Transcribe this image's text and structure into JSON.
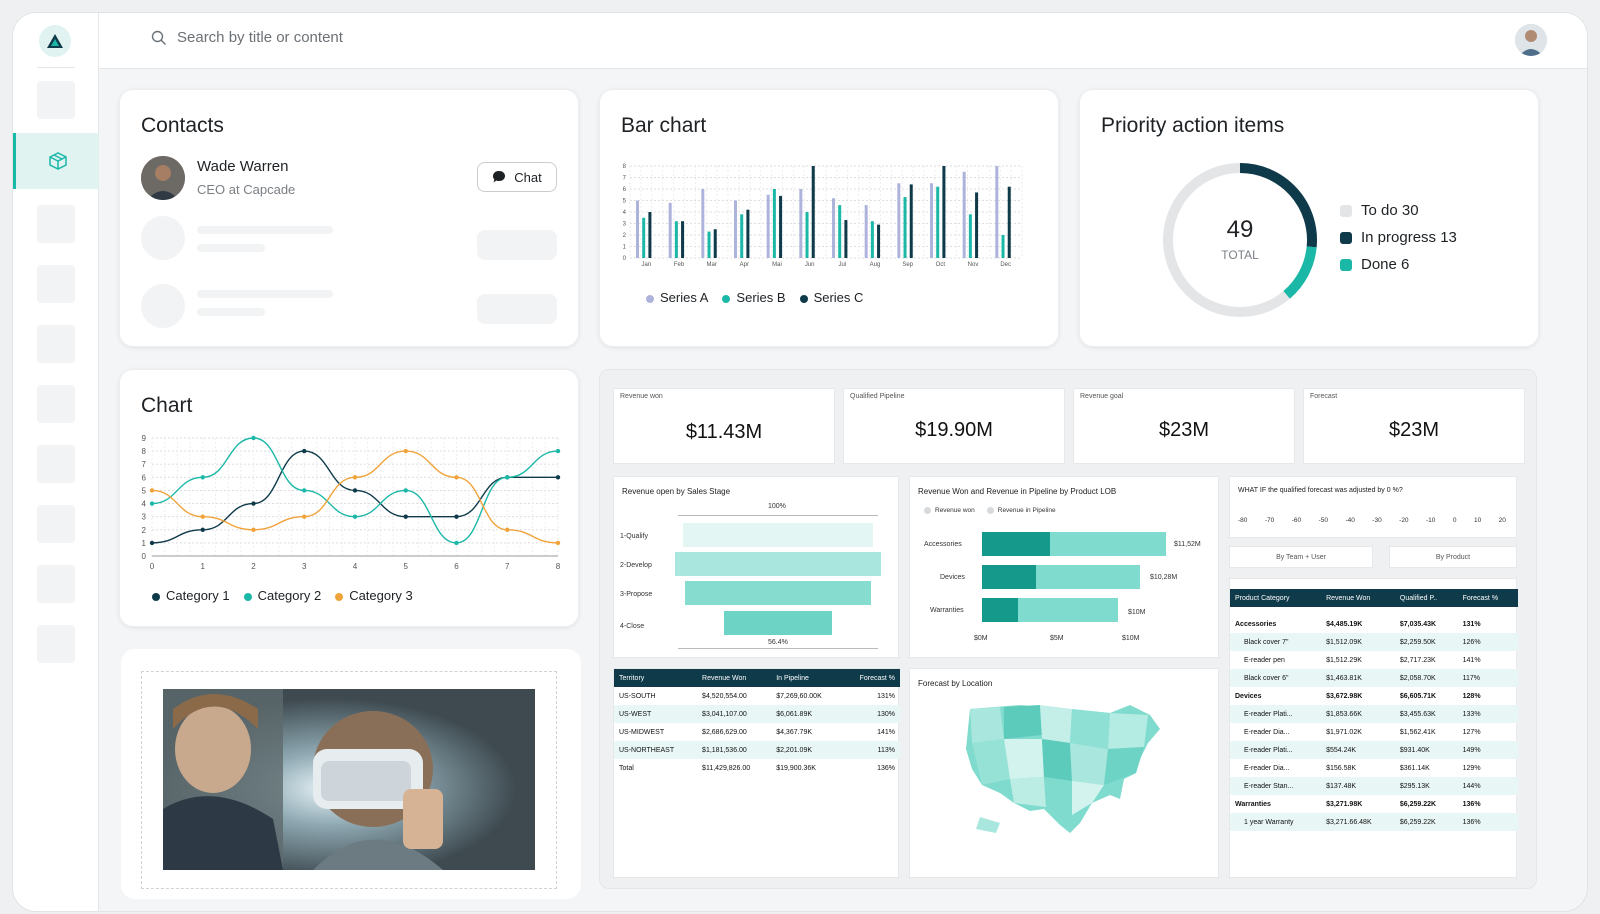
{
  "search": {
    "placeholder": "Search by title or content"
  },
  "contacts": {
    "title": "Contacts",
    "person": {
      "name": "Wade Warren",
      "role": "CEO at Capcade"
    },
    "chat_label": "Chat"
  },
  "bar_chart": {
    "title": "Bar chart",
    "legend": [
      "Series A",
      "Series B",
      "Series C"
    ]
  },
  "priority": {
    "title": "Priority action items",
    "total": "49",
    "total_label": "TOTAL",
    "items": [
      {
        "label": "To do 30",
        "color": "#e3e5e7"
      },
      {
        "label": "In progress 13",
        "color": "#0e3a4a"
      },
      {
        "label": "Done 6",
        "color": "#1bb8a8"
      }
    ]
  },
  "line_chart": {
    "title": "Chart",
    "legend": [
      "Category 1",
      "Category 2",
      "Category 3"
    ]
  },
  "kpis": [
    {
      "label": "Revenue won",
      "value": "$11.43M"
    },
    {
      "label": "Qualified Pipeline",
      "value": "$19.90M"
    },
    {
      "label": "Revenue goal",
      "value": "$23M"
    },
    {
      "label": "Forecast",
      "value": "$23M"
    }
  ],
  "funnel": {
    "title": "Revenue open by Sales Stage",
    "top": "100%",
    "bottom": "56.4%",
    "stages": [
      "1-Qualify",
      "2-Develop",
      "3-Propose",
      "4-Close"
    ]
  },
  "lob": {
    "title": "Revenue Won and Revenue in Pipeline by Product LOB",
    "legend": [
      "Revenue won",
      "Revenue in Pipeline"
    ],
    "rows": [
      {
        "name": "Accessories",
        "value": "$11,52M"
      },
      {
        "name": "Devices",
        "value": "$10,28M"
      },
      {
        "name": "Warranties",
        "value": "$10M"
      }
    ],
    "axis": [
      "$0M",
      "$5M",
      "$10M"
    ]
  },
  "whatif": {
    "title": "WHAT IF the qualified forecast was adjusted by 0 %?",
    "ticks": [
      "-80",
      "-70",
      "-60",
      "-50",
      "-40",
      "-30",
      "-20",
      "-10",
      "0",
      "10",
      "20"
    ],
    "tab1": "By Team + User",
    "tab2": "By Product"
  },
  "territory": {
    "headers": [
      "Territory",
      "Revenue Won",
      "In Pipeline",
      "Forecast %"
    ],
    "rows": [
      [
        "US-SOUTH",
        "$4,520,554.00",
        "$7,269,60.00K",
        "131%"
      ],
      [
        "US-WEST",
        "$3,041,107.00",
        "$6,061.89K",
        "130%"
      ],
      [
        "US-MIDWEST",
        "$2,686,629.00",
        "$4,367.79K",
        "141%"
      ],
      [
        "US-NORTHEAST",
        "$1,181,536.00",
        "$2,201.09K",
        "113%"
      ],
      [
        "Total",
        "$11,429,826.00",
        "$19,900.36K",
        "136%"
      ]
    ]
  },
  "forecast_map": {
    "title": "Forecast by Location"
  },
  "product_table": {
    "headers": [
      "Product Category",
      "Revenue Won",
      "Qualified P..",
      "Forecast %"
    ],
    "rows": [
      {
        "c": "Accessories",
        "r": "$4,485.19K",
        "q": "$7,035.43K",
        "f": "131%",
        "bold": true
      },
      {
        "c": "Black cover 7\"",
        "r": "$1,512.09K",
        "q": "$2,259.50K",
        "f": "126%"
      },
      {
        "c": "E-reader pen",
        "r": "$1,512.29K",
        "q": "$2,717.23K",
        "f": "141%"
      },
      {
        "c": "Black cover 6\"",
        "r": "$1,463.81K",
        "q": "$2,058.70K",
        "f": "117%"
      },
      {
        "c": "Devices",
        "r": "$3,672.98K",
        "q": "$6,605.71K",
        "f": "128%",
        "bold": true
      },
      {
        "c": "E-reader Plati...",
        "r": "$1,853.66K",
        "q": "$3,455.63K",
        "f": "133%"
      },
      {
        "c": "E-reader Dia...",
        "r": "$1,971.02K",
        "q": "$1,562.41K",
        "f": "127%"
      },
      {
        "c": "E-reader Plati...",
        "r": "$554.24K",
        "q": "$931.40K",
        "f": "149%"
      },
      {
        "c": "E-reader Dia...",
        "r": "$156.58K",
        "q": "$361.14K",
        "f": "129%"
      },
      {
        "c": "E-reader Stan...",
        "r": "$137.48K",
        "q": "$295.13K",
        "f": "144%"
      },
      {
        "c": "Warranties",
        "r": "$3,271.98K",
        "q": "$6,259.22K",
        "f": "136%",
        "bold": true
      },
      {
        "c": "1 year Warranty",
        "r": "$3,271.66.48K",
        "q": "$6,259.22K",
        "f": "136%"
      }
    ]
  },
  "chart_data": [
    {
      "type": "bar",
      "categories": [
        "Jan",
        "Feb",
        "Mar",
        "Apr",
        "Mai",
        "Jun",
        "Jul",
        "Aug",
        "Sep",
        "Oct",
        "Nov",
        "Dec"
      ],
      "ylim": [
        0,
        8
      ],
      "series": [
        {
          "name": "Series A",
          "color": "#aeb3dc",
          "values": [
            5,
            4.8,
            6,
            5,
            5.5,
            6,
            5.2,
            4.6,
            6.5,
            6.5,
            7.5,
            8
          ]
        },
        {
          "name": "Series B",
          "color": "#1bb8a8",
          "values": [
            3.5,
            3.2,
            2.3,
            3.8,
            6,
            4,
            4.6,
            3.2,
            5.3,
            6.2,
            3.8,
            2
          ]
        },
        {
          "name": "Series C",
          "color": "#0e3a4a",
          "values": [
            4,
            3.2,
            2.5,
            4.2,
            5.4,
            8,
            3.3,
            2.9,
            6.4,
            8,
            5.7,
            6.2
          ]
        }
      ]
    },
    {
      "type": "line",
      "x": [
        0,
        1,
        2,
        3,
        4,
        5,
        6,
        7,
        8
      ],
      "ylim": [
        0,
        9
      ],
      "series": [
        {
          "name": "Category 1",
          "color": "#0e3a4a",
          "values": [
            1,
            2,
            4,
            8,
            5,
            3,
            3,
            6,
            6
          ]
        },
        {
          "name": "Category 2",
          "color": "#1bb8a8",
          "values": [
            4,
            6,
            9,
            5,
            3,
            5,
            1,
            6,
            8
          ]
        },
        {
          "name": "Category 3",
          "color": "#f0a33a",
          "values": [
            5,
            3,
            2,
            3,
            6,
            8,
            6,
            2,
            1
          ]
        }
      ]
    },
    {
      "type": "pie",
      "labels": [
        "To do",
        "In progress",
        "Done"
      ],
      "values": [
        30,
        13,
        6
      ],
      "colors": [
        "#e3e5e7",
        "#0e3a4a",
        "#1bb8a8"
      ]
    }
  ]
}
